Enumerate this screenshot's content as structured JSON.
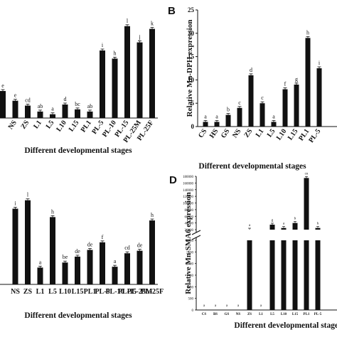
{
  "chart_data": [
    {
      "id": "A",
      "type": "bar",
      "panel_label": "",
      "ylabel": "",
      "xlabel": "Different developmental stages",
      "categories": [
        "",
        "NS",
        "ZS",
        "L1",
        "L5",
        "L10",
        "L15",
        "PL1",
        "PL-5",
        "PL-10",
        "PL-15",
        "PL-25M",
        "PL-25F"
      ],
      "values": [
        5.0,
        3.2,
        2.3,
        1.2,
        0.7,
        2.5,
        1.6,
        1.2,
        12.5,
        11.0,
        17.0,
        14.0,
        16.5
      ],
      "letters": [
        "e",
        "e",
        "cd",
        "ab",
        "a",
        "d",
        "bc",
        "ab",
        "i",
        "h",
        "l",
        "j",
        "k"
      ],
      "ylim": [
        0,
        20
      ]
    },
    {
      "id": "B",
      "type": "bar",
      "panel_label": "B",
      "ylabel": "Relative Mn-DPH expression",
      "xlabel": "Different developmental stages",
      "categories": [
        "CS",
        "HS",
        "GS",
        "NS",
        "ZS",
        "L1",
        "L5",
        "L10",
        "L15",
        "PL1",
        "PL-5",
        ""
      ],
      "values": [
        1.0,
        1.0,
        2.5,
        4.0,
        11.0,
        5.0,
        1.0,
        8.0,
        9.0,
        19.0,
        12.5,
        0
      ],
      "letters": [
        "a",
        "a",
        "b",
        "c",
        "d",
        "c",
        "a",
        "f",
        "g",
        "h",
        "i",
        ""
      ],
      "yticks": [
        0,
        5,
        10,
        15,
        20,
        25
      ],
      "ylim": [
        0,
        25
      ]
    },
    {
      "id": "C",
      "type": "bar",
      "panel_label": "",
      "ylabel": "",
      "xlabel": "Different developmental stages",
      "categories": [
        "",
        "NS",
        "ZS",
        "L1",
        "L5",
        "L10",
        "L15",
        "PL1",
        "PL-5",
        "PL-10",
        "PL-15",
        "PL-25M",
        "PL-25F"
      ],
      "values": [
        0,
        9.0,
        10.0,
        2.0,
        8.0,
        2.6,
        3.3,
        4.1,
        5.0,
        2.1,
        3.7,
        4.0,
        7.6
      ],
      "letters": [
        "",
        "i",
        "l",
        "a",
        "h",
        "be",
        "de",
        "de",
        "f",
        "a",
        "cd",
        "de",
        "h"
      ],
      "ylim": [
        0,
        12
      ]
    },
    {
      "id": "D",
      "type": "bar",
      "panel_label": "D",
      "ylabel": "Relative Mn-SMA6 expression",
      "xlabel": "Different developmental stages",
      "categories": [
        "CS",
        "BS",
        "GS",
        "NS",
        "ZS",
        "L1",
        "L5",
        "L10",
        "L15",
        "PL1",
        "PL-5",
        ""
      ],
      "values": [
        0,
        0,
        0,
        0,
        3600,
        0,
        35000,
        25000,
        40000,
        175000,
        25000,
        0
      ],
      "letters": [
        "a",
        "a",
        "a",
        "a",
        "a",
        "a",
        "g",
        "a",
        "b",
        "cn",
        "h",
        ""
      ],
      "yticks_upper": [
        20000,
        40000,
        60000,
        80000,
        100000,
        120000,
        140000,
        160000,
        180000
      ],
      "yticks_lower": [
        0,
        500,
        1000,
        1500,
        2000,
        2500,
        3000
      ],
      "axis_break": [
        3000,
        20000
      ]
    }
  ]
}
